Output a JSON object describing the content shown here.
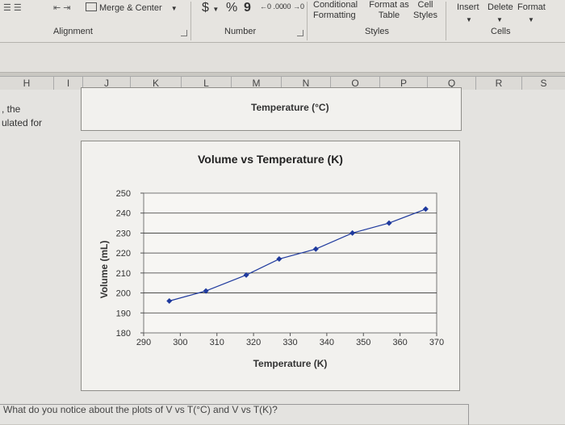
{
  "ribbon": {
    "merge_center": "Merge & Center",
    "currency_symbol": "$",
    "percent_symbol": "%",
    "comma_symbol": "9",
    "inc_decimal": "←0 .00",
    "dec_decimal": ".00 →0",
    "conditional_formatting": "Conditional Formatting",
    "format_as_table": "Format as Table",
    "cell_styles": "Cell Styles",
    "insert": "Insert",
    "delete": "Delete",
    "format": "Format",
    "groups": {
      "alignment": "Alignment",
      "number": "Number",
      "styles": "Styles",
      "cells": "Cells"
    }
  },
  "columns": [
    "H",
    "I",
    "J",
    "K",
    "L",
    "M",
    "N",
    "O",
    "P",
    "Q",
    "R",
    "S"
  ],
  "cells": {
    "left_fragment_1": ", the",
    "left_fragment_2": "ulated for",
    "question": "What do you notice about the plots of V vs T(°C) and V vs T(K)?"
  },
  "upper_chart": {
    "xlabel": "Temperature (°C)"
  },
  "chart_data": {
    "type": "line",
    "title": "Volume vs Temperature (K)",
    "xlabel": "Temperature (K)",
    "ylabel": "Volume (mL)",
    "xlim": [
      290,
      370
    ],
    "ylim": [
      180,
      250
    ],
    "x_ticks": [
      290,
      300,
      310,
      320,
      330,
      340,
      350,
      360,
      370
    ],
    "y_ticks": [
      180,
      190,
      200,
      210,
      220,
      230,
      240,
      250
    ],
    "grid": true,
    "series": [
      {
        "color": "#1f3a9e",
        "x": [
          297,
          307,
          318,
          327,
          337,
          347,
          357,
          367
        ],
        "y": [
          196,
          201,
          209,
          217,
          222,
          230,
          235,
          242
        ]
      }
    ]
  }
}
